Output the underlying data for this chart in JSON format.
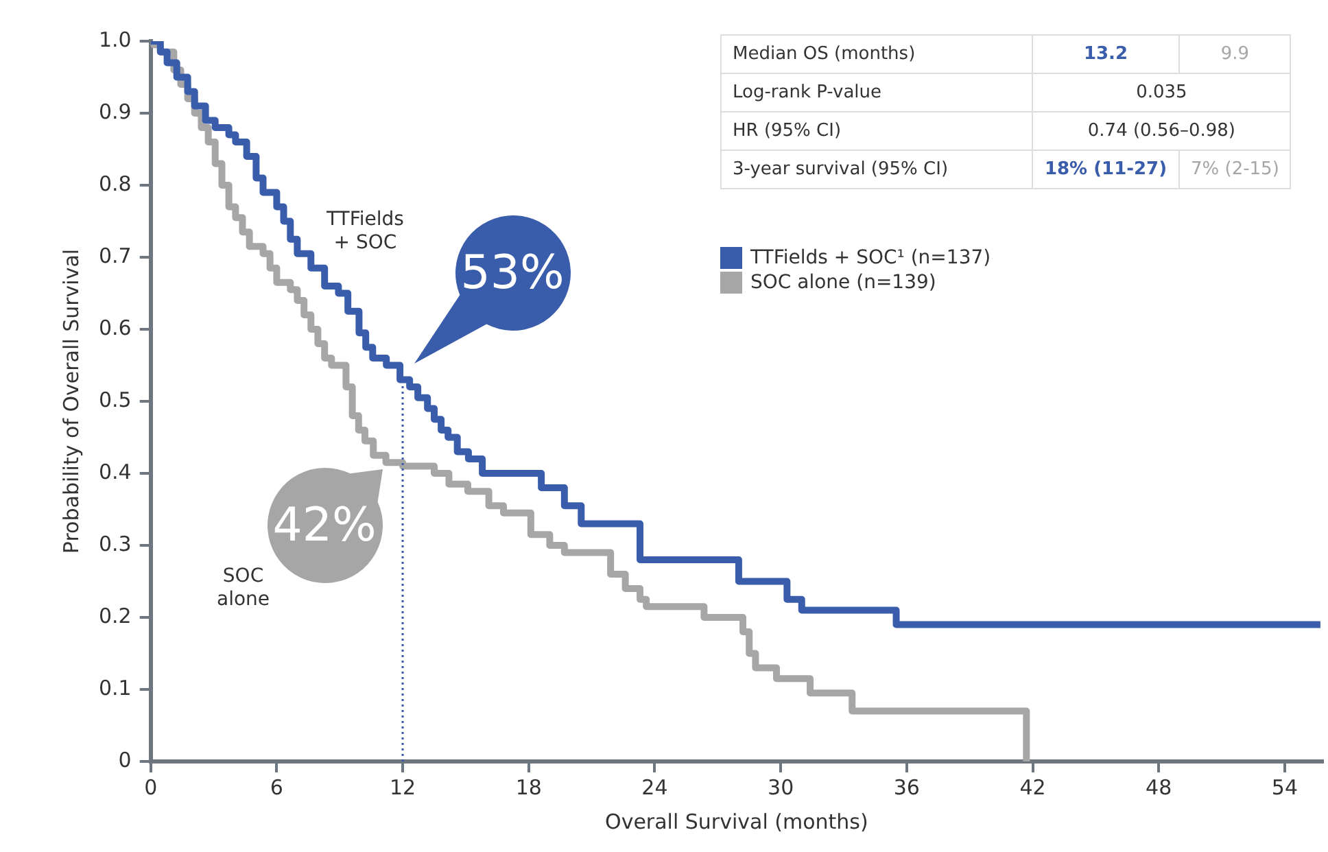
{
  "chart_data": {
    "type": "step",
    "xlabel": "Overall Survival (months)",
    "ylabel": "Probability of Overall Survival",
    "xlim": [
      0,
      55.8
    ],
    "xticks": [
      0,
      6,
      12,
      18,
      24,
      30,
      36,
      42,
      48,
      54
    ],
    "ylim": [
      0,
      1
    ],
    "yticks": [
      {
        "value": 0,
        "label": "0"
      },
      0.1,
      0.2,
      0.3,
      0.4,
      0.5,
      0.6,
      0.7,
      0.8,
      0.9,
      {
        "value": 1,
        "label": "1.0"
      }
    ],
    "grid": false,
    "legend": "top right",
    "marker": "none",
    "line_style": "solid",
    "ref_lines": [
      {
        "axis": "x",
        "value": 12,
        "color": "#3a5dab",
        "line_style": "dotted"
      }
    ],
    "annotations": [
      "Median OS (months)",
      "13.2",
      "9.9",
      "Log-rank P-value",
      "0.035",
      "HR (95% CI)",
      "0.74 (0.56–0.98)",
      "3-year survival (95% CI)",
      "18% (11-27)",
      "7% (2-15)",
      "TTFields\n+ SOC",
      "SOC\nalone",
      {
        "text": "53%",
        "x": 12,
        "y": 0.53
      },
      {
        "text": "42%",
        "x": 12,
        "y": 0.41
      }
    ],
    "series": [
      {
        "name": "TTFields + SOC¹ (n=137)",
        "color": "#3a5dab",
        "x": [
          0,
          0.46,
          0.78,
          1.24,
          1.76,
          2.09,
          2.61,
          3.07,
          3.72,
          4.04,
          4.57,
          5.02,
          5.35,
          6.0,
          6.33,
          6.65,
          6.98,
          7.63,
          8.28,
          8.94,
          9.39,
          9.92,
          10.24,
          10.57,
          11.22,
          11.87,
          12.33,
          12.72,
          13.18,
          13.5,
          13.83,
          14.16,
          14.6,
          15.13,
          15.79,
          18.6,
          19.7,
          20.5,
          23.3,
          28.0,
          30.3,
          31.0,
          35.5,
          55.7
        ],
        "values": [
          1.0,
          0.985,
          0.97,
          0.95,
          0.93,
          0.91,
          0.89,
          0.88,
          0.87,
          0.86,
          0.84,
          0.81,
          0.79,
          0.77,
          0.75,
          0.725,
          0.705,
          0.685,
          0.66,
          0.65,
          0.625,
          0.595,
          0.575,
          0.56,
          0.55,
          0.53,
          0.52,
          0.505,
          0.49,
          0.475,
          0.46,
          0.45,
          0.43,
          0.42,
          0.4,
          0.38,
          0.355,
          0.33,
          0.28,
          0.25,
          0.225,
          0.21,
          0.19,
          0.19
        ]
      },
      {
        "name": "SOC alone (n=139)",
        "color": "#a6a6a6",
        "x": [
          0,
          0.13,
          0.46,
          1.1,
          1.43,
          1.76,
          2.09,
          2.41,
          2.74,
          3.07,
          3.39,
          3.72,
          4.04,
          4.37,
          4.7,
          5.35,
          5.68,
          6.0,
          6.65,
          6.98,
          7.3,
          7.63,
          7.96,
          8.28,
          8.61,
          9.3,
          9.6,
          9.9,
          10.2,
          10.6,
          11.2,
          12.0,
          13.5,
          14.2,
          15.1,
          16.1,
          16.8,
          18.1,
          19.0,
          19.7,
          21.9,
          22.6,
          23.3,
          23.6,
          26.35,
          28.2,
          28.5,
          28.8,
          29.8,
          31.4,
          33.4,
          41.7
        ],
        "values": [
          1.0,
          0.995,
          0.985,
          0.96,
          0.94,
          0.92,
          0.9,
          0.88,
          0.86,
          0.83,
          0.8,
          0.77,
          0.755,
          0.735,
          0.715,
          0.705,
          0.685,
          0.665,
          0.655,
          0.64,
          0.62,
          0.6,
          0.58,
          0.56,
          0.55,
          0.52,
          0.48,
          0.46,
          0.445,
          0.425,
          0.415,
          0.41,
          0.4,
          0.385,
          0.375,
          0.355,
          0.345,
          0.315,
          0.3,
          0.29,
          0.26,
          0.24,
          0.225,
          0.215,
          0.2,
          0.18,
          0.15,
          0.13,
          0.115,
          0.095,
          0.07,
          0.0
        ]
      }
    ]
  }
}
